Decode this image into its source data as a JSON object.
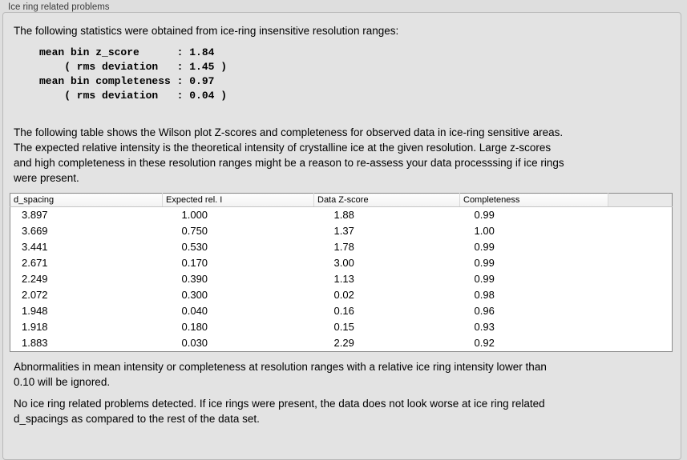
{
  "window": {
    "title": "Ice ring related problems"
  },
  "panel": {
    "intro": "The following statistics were obtained from ice-ring insensitive resolution ranges:",
    "stats_block": "mean bin z_score      : 1.84\n    ( rms deviation   : 1.45 )\nmean bin completeness : 0.97\n    ( rms deviation   : 0.04 )",
    "caption": "The following table shows the Wilson plot Z-scores and completeness for observed data in ice-ring sensitive areas.\nThe expected relative intensity is the theoretical intensity of crystalline ice at the given resolution. Large z-scores\nand high completeness in these resolution ranges might be a reason to re-assess your data processsing if ice rings\nwere present.",
    "table": {
      "columns": [
        "d_spacing",
        "Expected rel. I",
        "Data Z-score",
        "Completeness"
      ],
      "rows": [
        [
          "3.897",
          "1.000",
          "1.88",
          "0.99"
        ],
        [
          "3.669",
          "0.750",
          "1.37",
          "1.00"
        ],
        [
          "3.441",
          "0.530",
          "1.78",
          "0.99"
        ],
        [
          "2.671",
          "0.170",
          "3.00",
          "0.99"
        ],
        [
          "2.249",
          "0.390",
          "1.13",
          "0.99"
        ],
        [
          "2.072",
          "0.300",
          "0.02",
          "0.98"
        ],
        [
          "1.948",
          "0.040",
          "0.16",
          "0.96"
        ],
        [
          "1.918",
          "0.180",
          "0.15",
          "0.93"
        ],
        [
          "1.883",
          "0.030",
          "2.29",
          "0.92"
        ]
      ]
    },
    "note": "Abnormalities in mean intensity or completeness at resolution ranges with a relative ice ring intensity lower than\n0.10 will be ignored.",
    "conclusion": "No ice ring related problems detected. If ice rings were present, the data does not look worse at ice ring related\nd_spacings as compared to the rest of the data set."
  },
  "colors": {
    "panel_background": "#e3e3e3",
    "table_background": "#ffffff"
  }
}
